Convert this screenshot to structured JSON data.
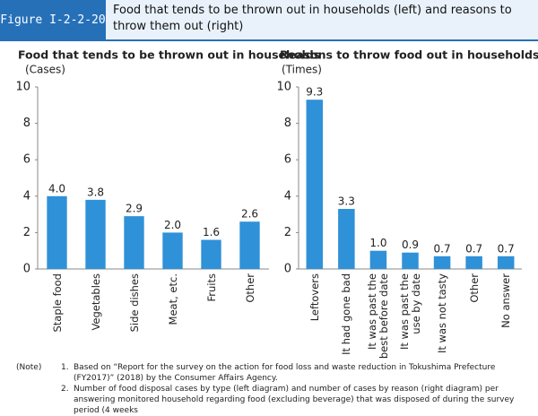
{
  "figure_label": "Figure I-2-2-20",
  "figure_title": "Food that tends to be thrown out in households (left) and reasons to throw them out (right)",
  "chart_data": [
    {
      "type": "bar",
      "title": "Food that tends to be thrown out in households",
      "y_label": "(Cases)",
      "categories": [
        "Staple food",
        "Vegetables",
        "Side dishes",
        "Meat, etc.",
        "Fruits",
        "Other"
      ],
      "values": [
        4.0,
        3.8,
        2.9,
        2.0,
        1.6,
        2.6
      ],
      "value_labels": [
        "4.0",
        "3.8",
        "2.9",
        "2.0",
        "1.6",
        "2.6"
      ],
      "color": "#2f91d8",
      "ylim": [
        0,
        10
      ],
      "yticks": [
        0,
        2,
        4,
        6,
        8,
        10
      ],
      "grid": false
    },
    {
      "type": "bar",
      "title": "Reasons to throw food out in households",
      "y_label": "(Times)",
      "categories": [
        "Leftovers",
        "It had gone bad",
        "It was past the best before date",
        "It was past the use by date",
        "It was not tasty",
        "Other",
        "No answer"
      ],
      "values": [
        9.3,
        3.3,
        1.0,
        0.9,
        0.7,
        0.7,
        0.7
      ],
      "value_labels": [
        "9.3",
        "3.3",
        "1.0",
        "0.9",
        "0.7",
        "0.7",
        "0.7"
      ],
      "color": "#2f91d8",
      "ylim": [
        0,
        10
      ],
      "yticks": [
        0,
        2,
        4,
        6,
        8,
        10
      ],
      "grid": false
    }
  ],
  "note_label": "(Note)",
  "notes": [
    {
      "number": "1.",
      "text": "Based on “Report for the survey on the action for food loss and waste reduction in Tokushima Prefecture (FY2017)” (2018) by the Consumer Affairs Agency."
    },
    {
      "number": "2.",
      "text": "Number of food disposal cases by type (left diagram) and number of cases by reason (right diagram) per answering monitored household regarding food (excluding beverage) that was disposed of during the survey period (4 weeks"
    }
  ]
}
